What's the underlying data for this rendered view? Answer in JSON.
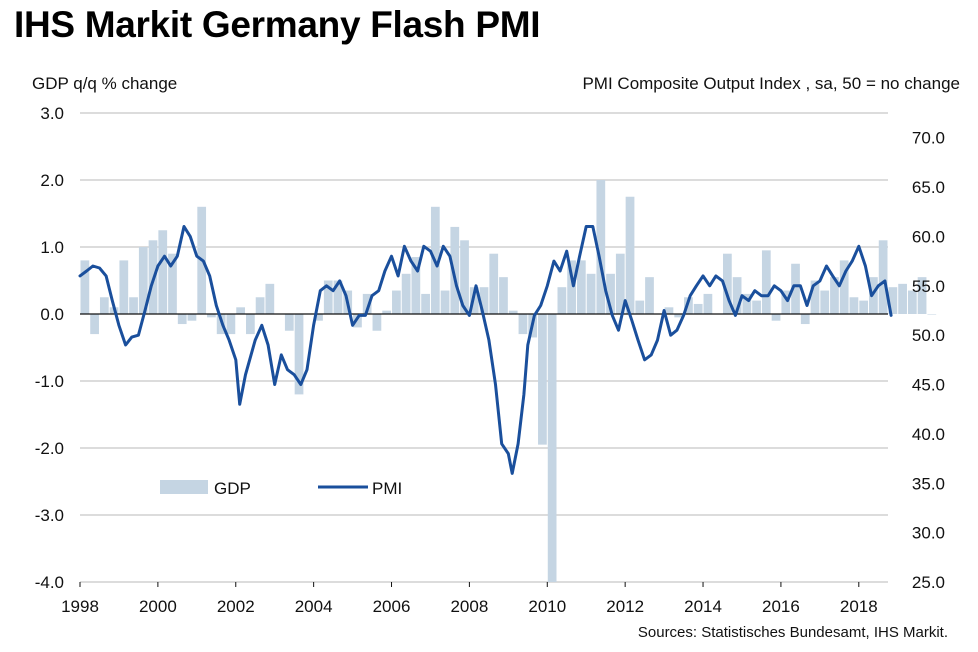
{
  "title": "IHS Markit Germany Flash PMI",
  "left_axis_label": "GDP q/q % change",
  "right_axis_label": "PMI Composite  Output  Index  , sa, 50 = no change",
  "source": "Sources: Statistisches Bundesamt, IHS Markit.",
  "colors": {
    "gdp": "#c5d5e3",
    "pmi": "#1a4f9c",
    "grid": "#c8c8c8"
  },
  "chart_data": {
    "type": "bar+line",
    "title": "IHS Markit Germany Flash PMI",
    "x_ticks": [
      "1998",
      "2000",
      "2002",
      "2004",
      "2006",
      "2008",
      "2010",
      "2012",
      "2014",
      "2016",
      "2018"
    ],
    "left_axis": {
      "label": "GDP q/q % change",
      "range": [
        -4.0,
        3.0
      ],
      "ticks": [
        "3.0",
        "2.0",
        "1.0",
        "0.0",
        "-1.0",
        "-2.0",
        "-3.0",
        "-4.0"
      ]
    },
    "right_axis": {
      "label": "PMI Composite  Output  Index  , sa, 50 = no change",
      "range": [
        25.0,
        72.5
      ],
      "ticks": [
        "70.0",
        "65.0",
        "60.0",
        "55.0",
        "50.0",
        "45.0",
        "40.0",
        "35.0",
        "30.0",
        "25.0"
      ]
    },
    "legend": {
      "position": "lower-left",
      "entries": [
        "GDP",
        "PMI"
      ]
    },
    "series": [
      {
        "name": "GDP",
        "type": "bar",
        "axis": "left",
        "x_start": 1998.0,
        "x_step": 0.25,
        "values": [
          0.8,
          -0.3,
          0.25,
          0.1,
          0.8,
          0.25,
          1.0,
          1.1,
          1.25,
          0.9,
          -0.15,
          -0.1,
          1.6,
          -0.05,
          -0.3,
          -0.3,
          0.1,
          -0.3,
          0.25,
          0.45,
          0.0,
          -0.25,
          -1.2,
          0.0,
          -0.1,
          0.5,
          0.5,
          0.35,
          -0.2,
          0.3,
          -0.25,
          0.05,
          0.35,
          0.6,
          0.85,
          0.3,
          1.6,
          0.35,
          1.3,
          1.1,
          0.4,
          0.4,
          0.9,
          0.55,
          0.05,
          -0.3,
          -0.35,
          -1.95,
          -4.0,
          0.4,
          0.8,
          0.8,
          0.6,
          2.0,
          0.6,
          0.9,
          1.75,
          0.2,
          0.55,
          0.0,
          0.1,
          -0.05,
          0.25,
          0.15,
          0.3,
          0.0,
          0.9,
          0.55,
          0.3,
          0.2,
          0.95,
          -0.1,
          0.35,
          0.75,
          -0.15,
          0.5,
          0.35,
          0.55,
          0.8,
          0.25,
          0.2,
          0.55,
          1.1,
          0.4,
          0.45,
          0.35,
          0.55,
          0.0
        ]
      },
      {
        "name": "PMI",
        "type": "line",
        "axis": "right",
        "points": [
          [
            1998.0,
            56.0
          ],
          [
            1998.17,
            56.5
          ],
          [
            1998.33,
            57.0
          ],
          [
            1998.5,
            56.8
          ],
          [
            1998.67,
            56.0
          ],
          [
            1998.83,
            53.5
          ],
          [
            1999.0,
            51.0
          ],
          [
            1999.17,
            49.0
          ],
          [
            1999.33,
            49.8
          ],
          [
            1999.5,
            50.0
          ],
          [
            1999.67,
            52.5
          ],
          [
            1999.83,
            55.0
          ],
          [
            2000.0,
            57.0
          ],
          [
            2000.17,
            58.0
          ],
          [
            2000.33,
            57.0
          ],
          [
            2000.5,
            58.0
          ],
          [
            2000.67,
            61.0
          ],
          [
            2000.83,
            60.0
          ],
          [
            2001.0,
            58.0
          ],
          [
            2001.17,
            57.5
          ],
          [
            2001.33,
            56.0
          ],
          [
            2001.5,
            53.0
          ],
          [
            2001.67,
            51.0
          ],
          [
            2001.83,
            49.5
          ],
          [
            2002.0,
            47.5
          ],
          [
            2002.1,
            43.0
          ],
          [
            2002.25,
            46.0
          ],
          [
            2002.5,
            49.5
          ],
          [
            2002.67,
            51.0
          ],
          [
            2002.83,
            49.0
          ],
          [
            2003.0,
            45.0
          ],
          [
            2003.17,
            48.0
          ],
          [
            2003.33,
            46.5
          ],
          [
            2003.5,
            46.0
          ],
          [
            2003.67,
            45.0
          ],
          [
            2003.83,
            46.5
          ],
          [
            2004.0,
            51.0
          ],
          [
            2004.17,
            54.5
          ],
          [
            2004.33,
            55.0
          ],
          [
            2004.5,
            54.5
          ],
          [
            2004.67,
            55.5
          ],
          [
            2004.83,
            54.0
          ],
          [
            2005.0,
            51.0
          ],
          [
            2005.17,
            52.0
          ],
          [
            2005.33,
            52.0
          ],
          [
            2005.5,
            54.0
          ],
          [
            2005.67,
            54.5
          ],
          [
            2005.83,
            56.5
          ],
          [
            2006.0,
            58.0
          ],
          [
            2006.17,
            56.0
          ],
          [
            2006.33,
            59.0
          ],
          [
            2006.5,
            57.5
          ],
          [
            2006.67,
            56.5
          ],
          [
            2006.83,
            59.0
          ],
          [
            2007.0,
            58.5
          ],
          [
            2007.17,
            57.0
          ],
          [
            2007.33,
            59.0
          ],
          [
            2007.5,
            58.0
          ],
          [
            2007.67,
            55.0
          ],
          [
            2007.83,
            53.0
          ],
          [
            2008.0,
            52.0
          ],
          [
            2008.17,
            55.0
          ],
          [
            2008.33,
            52.5
          ],
          [
            2008.5,
            49.5
          ],
          [
            2008.67,
            45.0
          ],
          [
            2008.83,
            39.0
          ],
          [
            2009.0,
            38.0
          ],
          [
            2009.1,
            36.0
          ],
          [
            2009.25,
            39.0
          ],
          [
            2009.4,
            44.0
          ],
          [
            2009.5,
            49.0
          ],
          [
            2009.67,
            52.0
          ],
          [
            2009.83,
            53.0
          ],
          [
            2010.0,
            55.0
          ],
          [
            2010.17,
            57.5
          ],
          [
            2010.33,
            56.5
          ],
          [
            2010.5,
            58.5
          ],
          [
            2010.67,
            55.0
          ],
          [
            2010.83,
            58.0
          ],
          [
            2011.0,
            61.0
          ],
          [
            2011.17,
            61.0
          ],
          [
            2011.33,
            58.0
          ],
          [
            2011.5,
            54.5
          ],
          [
            2011.67,
            52.0
          ],
          [
            2011.83,
            50.5
          ],
          [
            2012.0,
            53.5
          ],
          [
            2012.17,
            51.5
          ],
          [
            2012.33,
            49.5
          ],
          [
            2012.5,
            47.5
          ],
          [
            2012.67,
            48.0
          ],
          [
            2012.83,
            49.5
          ],
          [
            2013.0,
            52.5
          ],
          [
            2013.17,
            50.0
          ],
          [
            2013.33,
            50.5
          ],
          [
            2013.5,
            52.0
          ],
          [
            2013.67,
            54.0
          ],
          [
            2013.83,
            55.0
          ],
          [
            2014.0,
            56.0
          ],
          [
            2014.17,
            55.0
          ],
          [
            2014.33,
            56.0
          ],
          [
            2014.5,
            55.5
          ],
          [
            2014.67,
            53.5
          ],
          [
            2014.83,
            52.0
          ],
          [
            2015.0,
            54.0
          ],
          [
            2015.17,
            53.5
          ],
          [
            2015.33,
            54.5
          ],
          [
            2015.5,
            54.0
          ],
          [
            2015.67,
            54.0
          ],
          [
            2015.83,
            55.0
          ],
          [
            2016.0,
            54.5
          ],
          [
            2016.17,
            53.5
          ],
          [
            2016.33,
            55.0
          ],
          [
            2016.5,
            55.0
          ],
          [
            2016.67,
            53.0
          ],
          [
            2016.83,
            55.0
          ],
          [
            2017.0,
            55.5
          ],
          [
            2017.17,
            57.0
          ],
          [
            2017.33,
            56.0
          ],
          [
            2017.5,
            55.0
          ],
          [
            2017.67,
            56.5
          ],
          [
            2017.83,
            57.5
          ],
          [
            2018.0,
            59.0
          ],
          [
            2018.17,
            57.0
          ],
          [
            2018.33,
            54.0
          ],
          [
            2018.5,
            55.0
          ],
          [
            2018.67,
            55.5
          ],
          [
            2018.83,
            52.0
          ]
        ]
      }
    ]
  }
}
